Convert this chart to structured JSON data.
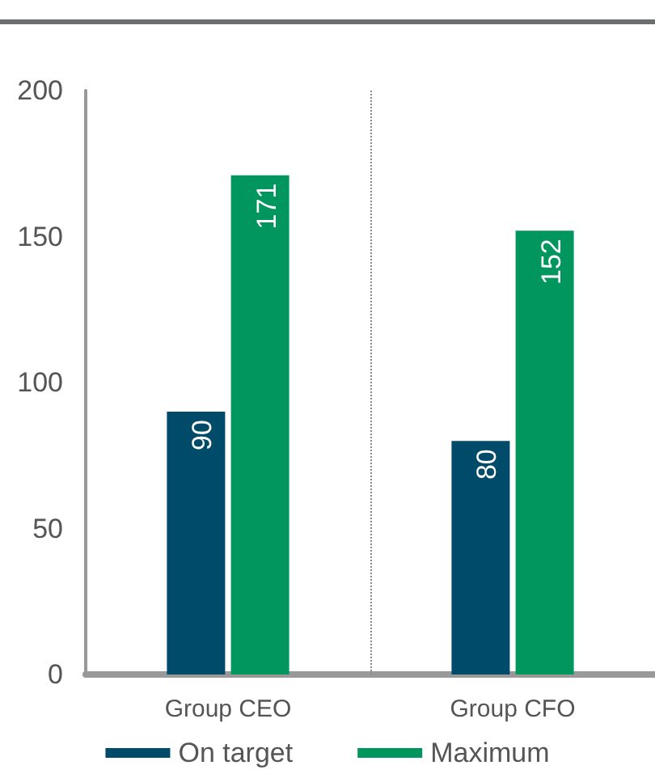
{
  "chart_data": {
    "type": "bar",
    "categories": [
      "Group CEO",
      "Group CFO"
    ],
    "series": [
      {
        "name": "On target",
        "color": "#004a6a",
        "values": [
          90,
          80
        ]
      },
      {
        "name": "Maximum",
        "color": "#00965e",
        "values": [
          171,
          152
        ]
      }
    ],
    "ylim": [
      0,
      200
    ],
    "yticks": [
      0,
      50,
      100,
      150,
      200
    ],
    "grid": false,
    "legend": "bottom",
    "data_labels": true
  }
}
